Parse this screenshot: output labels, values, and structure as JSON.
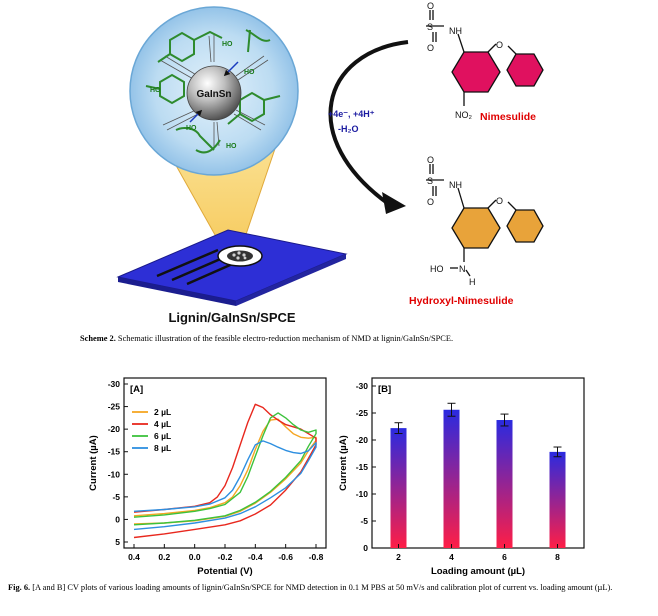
{
  "scheme": {
    "sphere_label": "GaInSn",
    "oh_label": "HO",
    "electrode_label": "Lignin/GaInSn/SPCE",
    "reaction_conditions_line1": "+4e⁻, +4H⁺",
    "reaction_conditions_line2": "-H₂O",
    "reactant_name": "Nimesulide",
    "product_name": "Hydroxyl-Nimesulide",
    "atom_O": "O",
    "atom_S": "S",
    "atom_NH": "NH",
    "atom_NO2": "NO₂",
    "atom_HO": "HO",
    "atom_N": "N",
    "atom_H": "H",
    "caption_label": "Scheme 2.",
    "caption_text": "Schematic illustration of the feasible electro-reduction mechanism of NMD at lignin/GaInSn/SPCE.",
    "colors": {
      "reactant_ring": "#e0115f",
      "product_ring": "#e8a33a",
      "red_text": "#e00000",
      "blue_text": "#1a1aa0"
    }
  },
  "figure": {
    "caption_label": "Fig. 6.",
    "caption_text": "[A and B] CV plots of various loading amounts of lignin/GaInSn/SPCE for NMD detection in 0.1 M PBS at 50 mV/s and calibration plot of current vs. loading amount (µL)."
  },
  "chart_data": [
    {
      "type": "line",
      "panel_label": "[A]",
      "xlabel": "Potential (V)",
      "ylabel": "Current (µA)",
      "xlim": [
        0.4,
        -0.8
      ],
      "ylim": [
        5,
        -30
      ],
      "xticks": [
        "0.4",
        "0.2",
        "0.0",
        "-0.2",
        "-0.4",
        "-0.6",
        "-0.8"
      ],
      "yticks": [
        "-30",
        "-25",
        "-20",
        "-15",
        "-10",
        "-5",
        "0",
        "5"
      ],
      "legend_position": "top-left",
      "series": [
        {
          "name": "2 µL",
          "color": "#f5a623",
          "forward": [
            [
              0.4,
              -0.8
            ],
            [
              0.2,
              -1.3
            ],
            [
              0.0,
              -2.0
            ],
            [
              -0.1,
              -2.6
            ],
            [
              -0.2,
              -3.7
            ],
            [
              -0.25,
              -5.0
            ],
            [
              -0.3,
              -7.5
            ],
            [
              -0.35,
              -11.0
            ],
            [
              -0.4,
              -15.5
            ],
            [
              -0.45,
              -19.5
            ],
            [
              -0.5,
              -22.0
            ],
            [
              -0.55,
              -22.2
            ],
            [
              -0.6,
              -20.5
            ],
            [
              -0.65,
              -19.0
            ],
            [
              -0.7,
              -18.2
            ],
            [
              -0.75,
              -18.0
            ],
            [
              -0.8,
              -18.2
            ]
          ],
          "reverse": [
            [
              -0.8,
              -17.5
            ],
            [
              -0.75,
              -15.2
            ],
            [
              -0.7,
              -12.5
            ],
            [
              -0.6,
              -9.0
            ],
            [
              -0.5,
              -6.0
            ],
            [
              -0.4,
              -3.6
            ],
            [
              -0.3,
              -1.8
            ],
            [
              -0.2,
              -0.7
            ],
            [
              0.0,
              0.3
            ],
            [
              0.2,
              0.8
            ],
            [
              0.4,
              1.0
            ]
          ]
        },
        {
          "name": "4 µL",
          "color": "#e8281e",
          "forward": [
            [
              0.4,
              -1.6
            ],
            [
              0.2,
              -2.2
            ],
            [
              0.0,
              -2.9
            ],
            [
              -0.1,
              -3.7
            ],
            [
              -0.15,
              -5.0
            ],
            [
              -0.2,
              -7.5
            ],
            [
              -0.25,
              -11.5
            ],
            [
              -0.3,
              -16.5
            ],
            [
              -0.35,
              -21.5
            ],
            [
              -0.4,
              -25.5
            ],
            [
              -0.45,
              -24.8
            ],
            [
              -0.5,
              -23.2
            ],
            [
              -0.55,
              -22.0
            ],
            [
              -0.6,
              -21.0
            ],
            [
              -0.7,
              -20.0
            ],
            [
              -0.8,
              -18.0
            ]
          ],
          "reverse": [
            [
              -0.8,
              -16.5
            ],
            [
              -0.75,
              -13.5
            ],
            [
              -0.7,
              -10.5
            ],
            [
              -0.6,
              -6.5
            ],
            [
              -0.5,
              -3.2
            ],
            [
              -0.4,
              -1.2
            ],
            [
              -0.3,
              0.3
            ],
            [
              -0.2,
              1.2
            ],
            [
              0.0,
              2.2
            ],
            [
              0.2,
              3.2
            ],
            [
              0.4,
              4.0
            ]
          ]
        },
        {
          "name": "6 µL",
          "color": "#3cc23c",
          "forward": [
            [
              0.4,
              -0.5
            ],
            [
              0.2,
              -1.0
            ],
            [
              0.0,
              -1.8
            ],
            [
              -0.1,
              -2.4
            ],
            [
              -0.2,
              -3.3
            ],
            [
              -0.3,
              -6.0
            ],
            [
              -0.35,
              -9.5
            ],
            [
              -0.4,
              -14.0
            ],
            [
              -0.45,
              -18.5
            ],
            [
              -0.5,
              -22.5
            ],
            [
              -0.55,
              -23.6
            ],
            [
              -0.6,
              -22.5
            ],
            [
              -0.65,
              -21.0
            ],
            [
              -0.7,
              -19.8
            ],
            [
              -0.75,
              -19.3
            ],
            [
              -0.8,
              -19.8
            ]
          ],
          "reverse": [
            [
              -0.8,
              -19.0
            ],
            [
              -0.75,
              -16.2
            ],
            [
              -0.7,
              -13.0
            ],
            [
              -0.6,
              -9.3
            ],
            [
              -0.5,
              -6.2
            ],
            [
              -0.4,
              -3.8
            ],
            [
              -0.3,
              -2.0
            ],
            [
              -0.2,
              -0.8
            ],
            [
              0.0,
              0.2
            ],
            [
              0.2,
              0.8
            ],
            [
              0.4,
              1.2
            ]
          ]
        },
        {
          "name": "8 µL",
          "color": "#2e8fe0",
          "forward": [
            [
              0.4,
              -1.8
            ],
            [
              0.2,
              -2.2
            ],
            [
              0.0,
              -2.8
            ],
            [
              -0.1,
              -3.4
            ],
            [
              -0.2,
              -4.8
            ],
            [
              -0.25,
              -6.5
            ],
            [
              -0.3,
              -9.5
            ],
            [
              -0.35,
              -13.2
            ],
            [
              -0.4,
              -16.5
            ],
            [
              -0.45,
              -17.4
            ],
            [
              -0.5,
              -16.8
            ],
            [
              -0.55,
              -16.0
            ],
            [
              -0.6,
              -15.3
            ],
            [
              -0.65,
              -14.8
            ],
            [
              -0.7,
              -14.6
            ],
            [
              -0.75,
              -15.2
            ],
            [
              -0.8,
              -17.0
            ]
          ],
          "reverse": [
            [
              -0.8,
              -16.0
            ],
            [
              -0.75,
              -13.0
            ],
            [
              -0.7,
              -10.2
            ],
            [
              -0.6,
              -7.0
            ],
            [
              -0.5,
              -4.8
            ],
            [
              -0.4,
              -2.8
            ],
            [
              -0.3,
              -1.3
            ],
            [
              -0.2,
              -0.3
            ],
            [
              0.0,
              0.8
            ],
            [
              0.2,
              1.6
            ],
            [
              0.4,
              2.2
            ]
          ]
        }
      ]
    },
    {
      "type": "bar",
      "panel_label": "[B]",
      "xlabel": "Loading amount (µL)",
      "ylabel": "Current (µA)",
      "ylim": [
        0,
        -30
      ],
      "yticks": [
        "-30",
        "-25",
        "-20",
        "-15",
        "-10",
        "-5",
        "0"
      ],
      "categories": [
        "2",
        "4",
        "6",
        "8"
      ],
      "values": [
        -22.2,
        -25.6,
        -23.7,
        -17.8
      ],
      "errors": [
        1.0,
        1.2,
        1.1,
        0.9
      ],
      "bar_gradient": {
        "top": "#2a2ae0",
        "bottom": "#ff1e46"
      }
    }
  ]
}
